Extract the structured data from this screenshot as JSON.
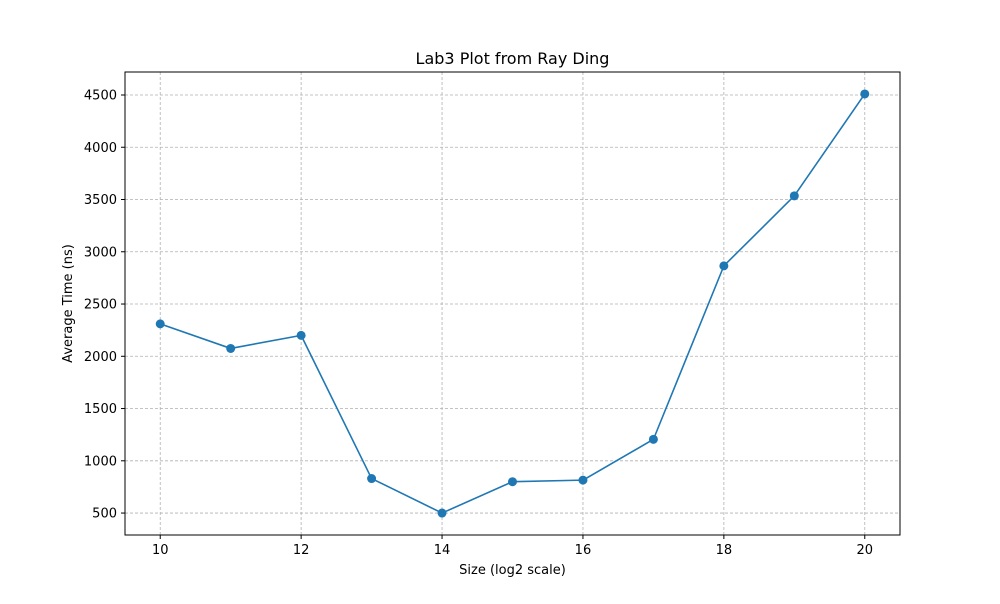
{
  "chart_data": {
    "type": "line",
    "title": "Lab3 Plot from Ray Ding",
    "xlabel": "Size (log2 scale)",
    "ylabel": "Average Time (ns)",
    "xlim": [
      9.5,
      20.5
    ],
    "ylim": [
      290,
      4720
    ],
    "xticks": [
      10,
      12,
      14,
      16,
      18,
      20
    ],
    "yticks": [
      500,
      1000,
      1500,
      2000,
      2500,
      3000,
      3500,
      4000,
      4500
    ],
    "grid": true,
    "grid_style": "dashed",
    "series": [
      {
        "color": "#1f77b4",
        "marker": "circle",
        "x": [
          10,
          11,
          12,
          13,
          14,
          15,
          16,
          17,
          18,
          19,
          20
        ],
        "y": [
          2310,
          2075,
          2200,
          830,
          500,
          800,
          815,
          1205,
          2865,
          3535,
          4510
        ]
      }
    ]
  }
}
